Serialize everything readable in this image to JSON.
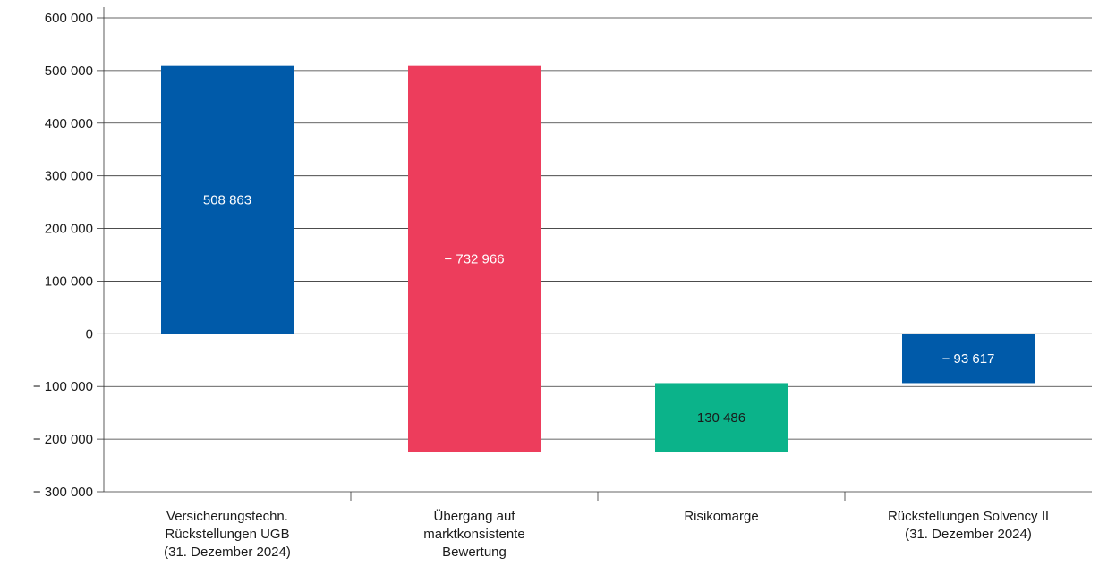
{
  "chart_data": {
    "type": "bar",
    "subtype": "waterfall",
    "title": "",
    "xlabel": "",
    "ylabel": "",
    "ylim": [
      -300000,
      600000
    ],
    "yticks": [
      600000,
      500000,
      400000,
      300000,
      200000,
      100000,
      0,
      -100000,
      -200000,
      -300000
    ],
    "ytick_labels": [
      "600 000",
      "500 000",
      "400 000",
      "300 000",
      "200 000",
      "100 000",
      "0",
      "− 100 000",
      "− 200 000",
      "− 300 000"
    ],
    "grid": "horizontal",
    "categories": [
      [
        "Versicherungstechn.",
        "Rückstellungen UGB",
        "(31. Dezember 2024)"
      ],
      [
        "Übergang auf",
        "marktkonsistente",
        "Bewertung"
      ],
      [
        "Risikomarge"
      ],
      [
        "Rückstellungen Solvency II",
        "(31. Dezember 2024)"
      ]
    ],
    "bars": [
      {
        "start": 0,
        "end": 508863,
        "label": "508 863",
        "color": "#005aa9",
        "label_color": "#ffffff"
      },
      {
        "start": 508863,
        "end": -224103,
        "label": "− 732 966",
        "color": "#ed3d5c",
        "label_color": "#ffffff"
      },
      {
        "start": -224103,
        "end": -93617,
        "label": "130 486",
        "color": "#0bb38a",
        "label_color": "#1a1a1a"
      },
      {
        "start": 0,
        "end": -93617,
        "label": "− 93 617",
        "color": "#005aa9",
        "label_color": "#ffffff"
      }
    ]
  }
}
